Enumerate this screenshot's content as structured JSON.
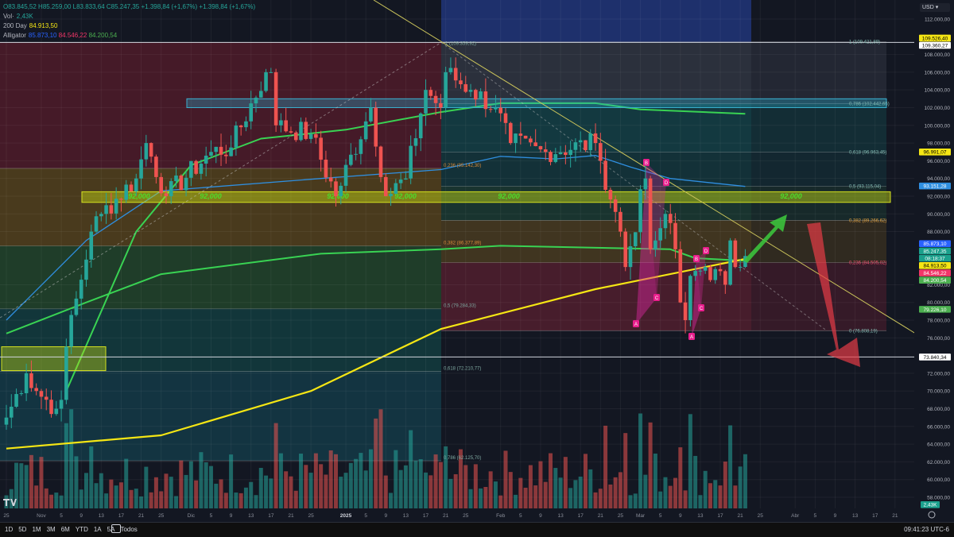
{
  "legend": {
    "ohlc": "O83.845,52 H85.259,00 L83.833,64 C85.247,35 +1.398,84 (+1,67%) +1.398,84 (+1,67%)",
    "vol_label": "Vol·",
    "vol_value": "2,43K",
    "ma_label": "200 Day",
    "ma_value": "84.913,50",
    "alligator_label": "Alligator",
    "alligator_values": [
      "85.873,10",
      "84.546,22",
      "84.200,54"
    ]
  },
  "currency": "USD",
  "price_ticks": [
    112000,
    108000,
    106000,
    104000,
    102000,
    100000,
    98000,
    96000,
    94000,
    92000,
    90000,
    88000,
    82000,
    80000,
    78000,
    76000,
    72000,
    70000,
    68000,
    66000,
    64000,
    62000,
    60000,
    58000
  ],
  "price_tick_labels": [
    "112.000,00",
    "108.000,00",
    "106.000,00",
    "104.000,00",
    "102.000,00",
    "100.000,00",
    "98.000,00",
    "96.000,00",
    "94.000,00",
    "92.000,00",
    "90.000,00",
    "88.000,00",
    "82.000,00",
    "80.000,00",
    "78.000,00",
    "76.000,00",
    "72.000,00",
    "70.000,00",
    "68.000,00",
    "66.000,00",
    "64.000,00",
    "62.000,00",
    "60.000,00",
    "58.000,00"
  ],
  "price_tags": [
    {
      "text": "109.526,40",
      "value": 109526.4,
      "color": "#f5e614",
      "fg": "#000"
    },
    {
      "text": "109.360,27",
      "value": 109360.27,
      "color": "#ffffff",
      "fg": "#000"
    },
    {
      "text": "96.991,07",
      "value": 96991.07,
      "color": "#f5e614",
      "fg": "#000"
    },
    {
      "text": "93.151,28",
      "value": 93151.28,
      "color": "#2f8fe0",
      "fg": "#fff"
    },
    {
      "text": "85.873,10",
      "value": 86600,
      "color": "#2962ff",
      "fg": "#fff"
    },
    {
      "text": "85.247,35",
      "value": 85700,
      "color": "#1aa08c",
      "fg": "#fff"
    },
    {
      "text": "08:18:37",
      "value": 84950,
      "color": "#1aa08c",
      "fg": "#fff"
    },
    {
      "text": "84.913,50",
      "value": 84150,
      "color": "#f5e614",
      "fg": "#000"
    },
    {
      "text": "84.546,22",
      "value": 83400,
      "color": "#f23668",
      "fg": "#fff"
    },
    {
      "text": "84.200,54",
      "value": 82650,
      "color": "#4caf50",
      "fg": "#fff"
    },
    {
      "text": "79.226,10",
      "value": 79226.1,
      "color": "#4caf50",
      "fg": "#fff"
    },
    {
      "text": "73.840,34",
      "value": 73840.34,
      "color": "#ffffff",
      "fg": "#000"
    }
  ],
  "volume_tag": "2,43K",
  "time_ticks": [
    {
      "label": "25",
      "date": "2024-10-25"
    },
    {
      "label": "Nov",
      "date": "2024-11-01"
    },
    {
      "label": "5",
      "date": "2024-11-05"
    },
    {
      "label": "9",
      "date": "2024-11-09"
    },
    {
      "label": "13",
      "date": "2024-11-13"
    },
    {
      "label": "17",
      "date": "2024-11-17"
    },
    {
      "label": "21",
      "date": "2024-11-21"
    },
    {
      "label": "25",
      "date": "2024-11-25"
    },
    {
      "label": "Dic",
      "date": "2024-12-01"
    },
    {
      "label": "5",
      "date": "2024-12-05"
    },
    {
      "label": "9",
      "date": "2024-12-09"
    },
    {
      "label": "13",
      "date": "2024-12-13"
    },
    {
      "label": "17",
      "date": "2024-12-17"
    },
    {
      "label": "21",
      "date": "2024-12-21"
    },
    {
      "label": "25",
      "date": "2024-12-25"
    },
    {
      "label": "2025",
      "date": "2025-01-01"
    },
    {
      "label": "5",
      "date": "2025-01-05"
    },
    {
      "label": "9",
      "date": "2025-01-09"
    },
    {
      "label": "13",
      "date": "2025-01-13"
    },
    {
      "label": "17",
      "date": "2025-01-17"
    },
    {
      "label": "21",
      "date": "2025-01-21"
    },
    {
      "label": "25",
      "date": "2025-01-25"
    },
    {
      "label": "Feb",
      "date": "2025-02-01"
    },
    {
      "label": "5",
      "date": "2025-02-05"
    },
    {
      "label": "9",
      "date": "2025-02-09"
    },
    {
      "label": "13",
      "date": "2025-02-13"
    },
    {
      "label": "17",
      "date": "2025-02-17"
    },
    {
      "label": "21",
      "date": "2025-02-21"
    },
    {
      "label": "25",
      "date": "2025-02-25"
    },
    {
      "label": "Mar",
      "date": "2025-03-01"
    },
    {
      "label": "5",
      "date": "2025-03-05"
    },
    {
      "label": "9",
      "date": "2025-03-09"
    },
    {
      "label": "13",
      "date": "2025-03-13"
    },
    {
      "label": "17",
      "date": "2025-03-17"
    },
    {
      "label": "21",
      "date": "2025-03-21"
    },
    {
      "label": "25",
      "date": "2025-03-25"
    },
    {
      "label": "Abr",
      "date": "2025-04-01"
    },
    {
      "label": "5",
      "date": "2025-04-05"
    },
    {
      "label": "9",
      "date": "2025-04-09"
    },
    {
      "label": "13",
      "date": "2025-04-13"
    },
    {
      "label": "17",
      "date": "2025-04-17"
    },
    {
      "label": "21",
      "date": "2025-04-21"
    },
    {
      "label": "25",
      "date": "2025-04-25"
    }
  ],
  "ranges": [
    "1D",
    "5D",
    "1M",
    "3M",
    "6M",
    "YTD",
    "1A",
    "5A",
    "Todos"
  ],
  "clock": "09:41:23 UTC-6",
  "chart_data": {
    "type": "candlestick",
    "ylim": [
      57000,
      113000
    ],
    "xlim": [
      "2024-10-25",
      "2025-04-30"
    ],
    "grid": true,
    "colors": {
      "up": "#26a69a",
      "down": "#ef5350",
      "ma200": "#f5e614",
      "ma_green": "#39d353",
      "ma_blue": "#2f8fe0"
    },
    "closes": [
      [
        "2024-10-25",
        67000
      ],
      [
        "2024-10-29",
        72000
      ],
      [
        "2024-10-31",
        70000
      ],
      [
        "2024-11-04",
        68000
      ],
      [
        "2024-11-05",
        69000
      ],
      [
        "2024-11-06",
        75000
      ],
      [
        "2024-11-11",
        88000
      ],
      [
        "2024-11-13",
        90000
      ],
      [
        "2024-11-20",
        94000
      ],
      [
        "2024-11-22",
        98000
      ],
      [
        "2024-11-26",
        92000
      ],
      [
        "2024-12-05",
        97000
      ],
      [
        "2024-12-09",
        97500
      ],
      [
        "2024-12-16",
        106000
      ],
      [
        "2024-12-17",
        106000
      ],
      [
        "2024-12-18",
        100000
      ],
      [
        "2024-12-25",
        99000
      ],
      [
        "2024-12-30",
        92000
      ],
      [
        "2025-01-06",
        102000
      ],
      [
        "2025-01-09",
        92000
      ],
      [
        "2025-01-13",
        94000
      ],
      [
        "2025-01-17",
        104000
      ],
      [
        "2025-01-20",
        102000
      ],
      [
        "2025-01-21",
        106000
      ],
      [
        "2025-01-26",
        104000
      ],
      [
        "2025-01-31",
        102000
      ],
      [
        "2025-02-03",
        98000
      ],
      [
        "2025-02-10",
        97000
      ],
      [
        "2025-02-20",
        98000
      ],
      [
        "2025-02-21",
        96000
      ],
      [
        "2025-02-25",
        88000
      ],
      [
        "2025-02-26",
        84000
      ],
      [
        "2025-03-02",
        94000
      ],
      [
        "2025-03-03",
        86000
      ],
      [
        "2025-03-04",
        87000
      ],
      [
        "2025-03-06",
        90000
      ],
      [
        "2025-03-08",
        86000
      ],
      [
        "2025-03-09",
        80000
      ],
      [
        "2025-03-10",
        78000
      ],
      [
        "2025-03-11",
        83000
      ],
      [
        "2025-03-14",
        84000
      ],
      [
        "2025-03-18",
        82000
      ],
      [
        "2025-03-19",
        87000
      ],
      [
        "2025-03-20",
        84000
      ],
      [
        "2025-03-22",
        85247.35
      ]
    ],
    "ma200": [
      [
        "2024-10-25",
        63500
      ],
      [
        "2024-11-25",
        65000
      ],
      [
        "2024-12-25",
        70000
      ],
      [
        "2025-01-20",
        77000
      ],
      [
        "2025-02-20",
        81500
      ],
      [
        "2025-03-22",
        84913.5
      ]
    ],
    "ma_green_upper": [
      [
        "2024-11-06",
        70000
      ],
      [
        "2024-11-20",
        88000
      ],
      [
        "2024-12-01",
        95500
      ],
      [
        "2024-12-15",
        98500
      ],
      [
        "2025-01-01",
        99500
      ],
      [
        "2025-01-20",
        101500
      ],
      [
        "2025-02-01",
        102500
      ],
      [
        "2025-02-20",
        102500
      ],
      [
        "2025-03-01",
        101800
      ],
      [
        "2025-03-22",
        101300
      ]
    ],
    "ma_green_lower": [
      [
        "2024-10-25",
        76500
      ],
      [
        "2024-11-10",
        80000
      ],
      [
        "2024-11-25",
        83200
      ],
      [
        "2024-12-27",
        85500
      ],
      [
        "2025-01-20",
        86000
      ],
      [
        "2025-02-01",
        86400
      ],
      [
        "2025-03-07",
        86000
      ],
      [
        "2025-03-12",
        85000
      ],
      [
        "2025-03-22",
        84700
      ]
    ],
    "ma_blue": [
      [
        "2024-10-25",
        78000
      ],
      [
        "2024-11-10",
        87000
      ],
      [
        "2024-11-25",
        92600
      ],
      [
        "2024-12-27",
        94000
      ],
      [
        "2025-01-20",
        95000
      ],
      [
        "2025-02-01",
        96500
      ],
      [
        "2025-02-12",
        96200
      ],
      [
        "2025-02-20",
        96600
      ],
      [
        "2025-02-27",
        95300
      ],
      [
        "2025-03-07",
        94000
      ],
      [
        "2025-03-22",
        93100
      ]
    ],
    "fib_left_labels": [
      {
        "text": "1 (109.359,92)",
        "value": 109360
      },
      {
        "text": "0,236 (95.142,30)",
        "value": 95142.3
      },
      {
        "text": "0,382 (86.377,89)",
        "value": 86377.89
      },
      {
        "text": "0,5 (79.284,33)",
        "value": 79284.33
      },
      {
        "text": "0,618 (72.210,77)",
        "value": 72210.77
      },
      {
        "text": "0,786 (62.125,70)",
        "value": 62125.7
      }
    ],
    "fib_right_labels": [
      {
        "text": "1 (109.421,89)",
        "value": 109421.89
      },
      {
        "text": "0,786 (102.442,65)",
        "value": 102442.65
      },
      {
        "text": "0,618 (96.963,45)",
        "value": 96963.45
      },
      {
        "text": "0,5 (93.115,04)",
        "value": 93115.04
      },
      {
        "text": "0,382 (89.266,62)",
        "value": 89266.62
      },
      {
        "text": "0,236 (84.505,02)",
        "value": 84505.02
      },
      {
        "text": "0 (76.808,19)",
        "value": 76808.19
      }
    ],
    "support_label": "92,000",
    "support_value": 92000,
    "harmonic_labels": [
      "A",
      "B",
      "C",
      "D"
    ]
  }
}
